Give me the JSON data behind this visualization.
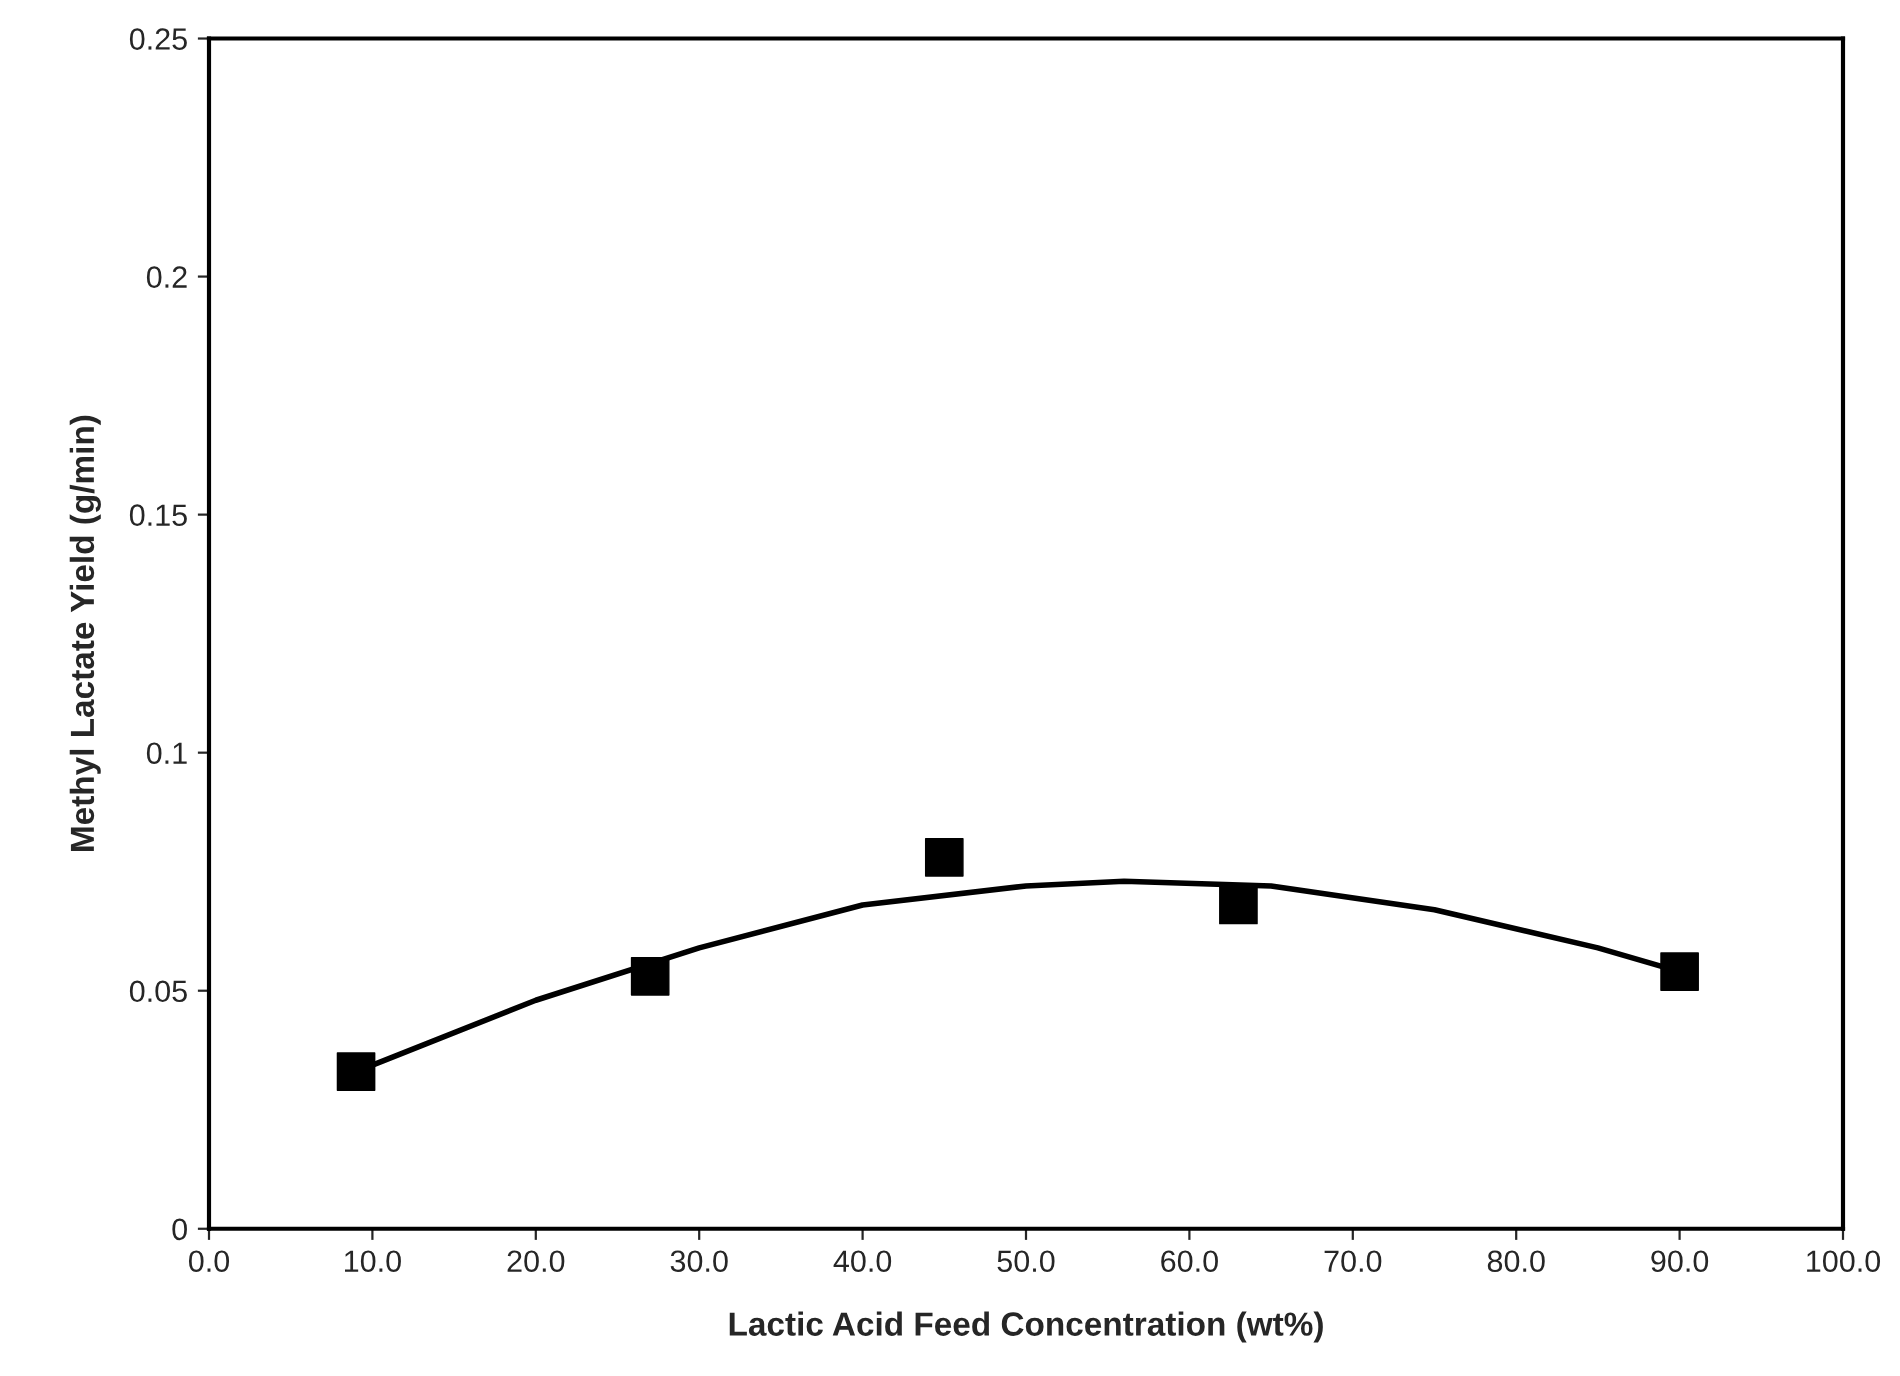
{
  "chart_data": {
    "type": "scatter",
    "xlabel": "Lactic Acid Feed Concentration (wt%)",
    "ylabel": "Methyl Lactate Yield (g/min)",
    "xlim": [
      0,
      100
    ],
    "ylim": [
      0,
      0.25
    ],
    "xticks": [
      {
        "value": 0,
        "label": "0.0"
      },
      {
        "value": 10,
        "label": "10.0"
      },
      {
        "value": 20,
        "label": "20.0"
      },
      {
        "value": 30,
        "label": "30.0"
      },
      {
        "value": 40,
        "label": "40.0"
      },
      {
        "value": 50,
        "label": "50.0"
      },
      {
        "value": 60,
        "label": "60.0"
      },
      {
        "value": 70,
        "label": "70.0"
      },
      {
        "value": 80,
        "label": "80.0"
      },
      {
        "value": 90,
        "label": "90.0"
      },
      {
        "value": 100,
        "label": "100.0"
      }
    ],
    "yticks": [
      0,
      0.05,
      0.1,
      0.15,
      0.2,
      0.25
    ],
    "grid": false,
    "series": [
      {
        "color": "#000000",
        "marker": "square",
        "x": [
          9,
          27,
          45,
          63,
          90
        ],
        "values": [
          0.033,
          0.053,
          0.078,
          0.068,
          0.054
        ]
      },
      {
        "type": "line",
        "color": "#000000",
        "marker": "none",
        "line_style": "solid",
        "x": [
          9,
          20,
          30,
          40,
          50,
          56,
          65,
          75,
          85,
          90
        ],
        "values": [
          0.033,
          0.048,
          0.059,
          0.068,
          0.072,
          0.073,
          0.072,
          0.067,
          0.059,
          0.054
        ]
      }
    ]
  }
}
